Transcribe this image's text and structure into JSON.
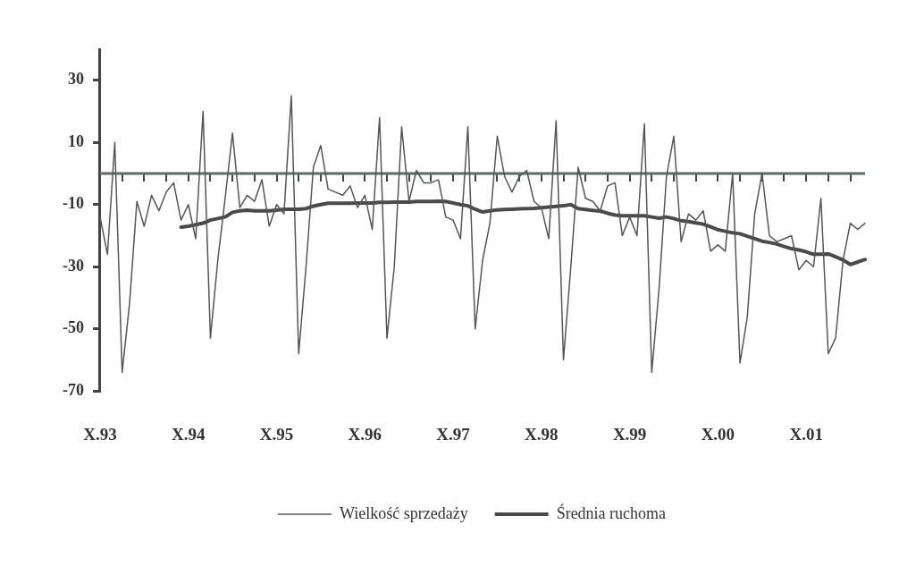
{
  "chart_data": {
    "type": "line",
    "categories": [
      "X.93",
      null,
      null,
      null,
      null,
      null,
      null,
      null,
      null,
      null,
      null,
      null,
      "X.94",
      null,
      null,
      null,
      null,
      null,
      null,
      null,
      null,
      null,
      null,
      null,
      "X.95",
      null,
      null,
      null,
      null,
      null,
      null,
      null,
      null,
      null,
      null,
      null,
      "X.96",
      null,
      null,
      null,
      null,
      null,
      null,
      null,
      null,
      null,
      null,
      null,
      "X.97",
      null,
      null,
      null,
      null,
      null,
      null,
      null,
      null,
      null,
      null,
      null,
      "X.98",
      null,
      null,
      null,
      null,
      null,
      null,
      null,
      null,
      null,
      null,
      null,
      "X.99",
      null,
      null,
      null,
      null,
      null,
      null,
      null,
      null,
      null,
      null,
      null,
      "X.00",
      null,
      null,
      null,
      null,
      null,
      null,
      null,
      null,
      null,
      null,
      null,
      "X.01",
      null,
      null,
      null,
      null,
      null,
      null,
      null,
      null
    ],
    "series": [
      {
        "name": "Wielkość sprzedaży",
        "color": "#555555",
        "values": [
          -14,
          -26,
          10,
          -64,
          -42,
          -9,
          -17,
          -7,
          -12,
          -6,
          -3,
          -15,
          -10,
          -21,
          20,
          -53,
          -28,
          -8,
          13,
          -11,
          -7,
          -9,
          -2,
          -17,
          -10,
          -13,
          25,
          -58,
          -30,
          2,
          9,
          -5,
          -6,
          -7,
          -4,
          -11,
          -7,
          -18,
          18,
          -53,
          -30,
          15,
          -9,
          1,
          -3,
          -3,
          -2,
          -14,
          -15,
          -21,
          15,
          -50,
          -28,
          -16,
          12,
          -1,
          -6,
          -1,
          1,
          -9,
          -11,
          -21,
          17,
          -60,
          -30,
          2,
          -8,
          -9,
          -12,
          -4,
          -3,
          -20,
          -14,
          -20,
          16,
          -64,
          -37,
          -1,
          12,
          -22,
          -13,
          -15,
          -12,
          -25,
          -23,
          -25,
          0,
          -61,
          -46,
          -13,
          0,
          -20,
          -22,
          -21,
          -20,
          -31,
          -28,
          -30,
          -8,
          -58,
          -53,
          -28,
          -16,
          -18,
          -16
        ]
      },
      {
        "name": "Średnia ruchoma",
        "color": "#4a4a4a",
        "values": [
          null,
          null,
          null,
          null,
          null,
          null,
          null,
          null,
          null,
          null,
          null,
          -17.3,
          -17,
          -16.5,
          -16,
          -15,
          -14.5,
          -14,
          -12.5,
          -12,
          -11.8,
          -12,
          -12,
          -12,
          -11.8,
          -11.5,
          -11.5,
          -11.5,
          -11.3,
          -10.5,
          -10,
          -9.6,
          -9.6,
          -9.6,
          -9.6,
          -9.5,
          -9.5,
          -9.5,
          -9.3,
          -9.3,
          -9.2,
          -9.2,
          -9.2,
          -9,
          -9,
          -9,
          -8.9,
          -9,
          -9.5,
          -10,
          -10.4,
          -11.5,
          -12.4,
          -12,
          -11.7,
          -11.6,
          -11.5,
          -11.4,
          -11.3,
          -11.2,
          -11,
          -10.8,
          -10.6,
          -10.4,
          -10,
          -11.3,
          -11.6,
          -11.9,
          -12.1,
          -12.8,
          -13.4,
          -13.6,
          -13.6,
          -13.6,
          -13.6,
          -14,
          -14.4,
          -14,
          -14.5,
          -15.2,
          -15.5,
          -15.9,
          -16.3,
          -17.2,
          -18.1,
          -18.6,
          -19.1,
          -19.4,
          -20.2,
          -21,
          -21.8,
          -22.2,
          -22.7,
          -23.5,
          -24.2,
          -24.6,
          -25.2,
          -26,
          -26,
          -25.9,
          -26.8,
          -27.8,
          -29.3,
          -28.5,
          -27.7
        ]
      }
    ],
    "ref_lines": [
      {
        "axis": "y",
        "value": 0,
        "color": "#5e6a6a"
      }
    ],
    "ylim": [
      -70,
      40
    ],
    "yticks": [
      -70,
      -50,
      -30,
      -10,
      10,
      30
    ],
    "legend": "bottom"
  }
}
